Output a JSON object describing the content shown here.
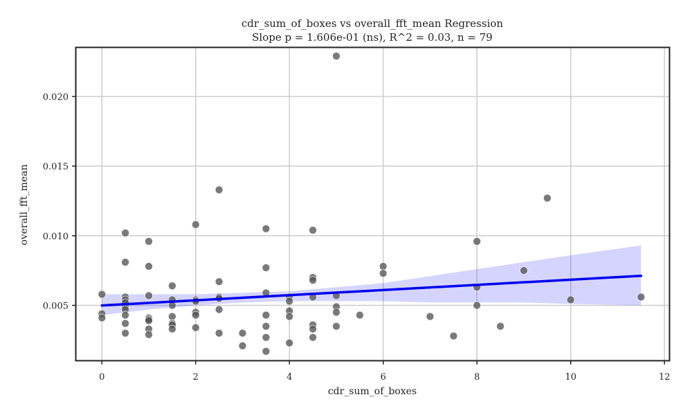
{
  "chart_data": {
    "type": "scatter",
    "title": "cdr_sum_of_boxes vs overall_fft_mean Regression",
    "subtitle": "Slope p = 1.606e-01 (ns), R^2 = 0.03, n = 79",
    "xlabel": "cdr_sum_of_boxes",
    "ylabel": "overall_fft_mean",
    "xlim": [
      -0.55,
      12.1
    ],
    "ylim": [
      0.00105,
      0.0235
    ],
    "x_ticks": [
      0,
      2,
      4,
      6,
      8,
      10,
      12
    ],
    "y_ticks": [
      0.005,
      0.01,
      0.015,
      0.02
    ],
    "x_tick_labels": [
      "0",
      "2",
      "4",
      "6",
      "8",
      "10",
      "12"
    ],
    "y_tick_labels": [
      "0.005",
      "0.010",
      "0.015",
      "0.020"
    ],
    "grid": true,
    "series": [
      {
        "points": [
          [
            0,
            0.0058
          ],
          [
            0,
            0.0044
          ],
          [
            0,
            0.0041
          ],
          [
            0.5,
            0.0102
          ],
          [
            0.5,
            0.0081
          ],
          [
            0.5,
            0.0056
          ],
          [
            0.5,
            0.0054
          ],
          [
            0.5,
            0.0052
          ],
          [
            0.5,
            0.0049
          ],
          [
            0.5,
            0.0047
          ],
          [
            0.5,
            0.0043
          ],
          [
            0.5,
            0.0037
          ],
          [
            0.5,
            0.003
          ],
          [
            1,
            0.0096
          ],
          [
            1,
            0.0078
          ],
          [
            1,
            0.0057
          ],
          [
            1,
            0.0041
          ],
          [
            1,
            0.004
          ],
          [
            1,
            0.0039
          ],
          [
            1,
            0.0033
          ],
          [
            1,
            0.0029
          ],
          [
            1.5,
            0.0064
          ],
          [
            1.5,
            0.0054
          ],
          [
            1.5,
            0.005
          ],
          [
            1.5,
            0.0042
          ],
          [
            1.5,
            0.0037
          ],
          [
            1.5,
            0.0036
          ],
          [
            1.5,
            0.0033
          ],
          [
            2,
            0.0108
          ],
          [
            2,
            0.0054
          ],
          [
            2,
            0.0053
          ],
          [
            2,
            0.0045
          ],
          [
            2,
            0.0043
          ],
          [
            2,
            0.0034
          ],
          [
            2.5,
            0.0133
          ],
          [
            2.5,
            0.0067
          ],
          [
            2.5,
            0.0056
          ],
          [
            2.5,
            0.0055
          ],
          [
            2.5,
            0.0047
          ],
          [
            2.5,
            0.003
          ],
          [
            3,
            0.003
          ],
          [
            3,
            0.0021
          ],
          [
            3.5,
            0.0105
          ],
          [
            3.5,
            0.0077
          ],
          [
            3.5,
            0.0059
          ],
          [
            3.5,
            0.0043
          ],
          [
            3.5,
            0.0035
          ],
          [
            3.5,
            0.0027
          ],
          [
            3.5,
            0.0017
          ],
          [
            4,
            0.0056
          ],
          [
            4,
            0.0053
          ],
          [
            4,
            0.0046
          ],
          [
            4,
            0.0042
          ],
          [
            4,
            0.0023
          ],
          [
            4.5,
            0.0104
          ],
          [
            4.5,
            0.007
          ],
          [
            4.5,
            0.0068
          ],
          [
            4.5,
            0.0056
          ],
          [
            4.5,
            0.0036
          ],
          [
            4.5,
            0.0033
          ],
          [
            4.5,
            0.0027
          ],
          [
            5,
            0.0229
          ],
          [
            5,
            0.0057
          ],
          [
            5,
            0.0049
          ],
          [
            5,
            0.0045
          ],
          [
            5,
            0.0035
          ],
          [
            5.5,
            0.0043
          ],
          [
            6,
            0.0078
          ],
          [
            6,
            0.0073
          ],
          [
            7,
            0.0042
          ],
          [
            7.5,
            0.0028
          ],
          [
            8,
            0.0096
          ],
          [
            8,
            0.0063
          ],
          [
            8,
            0.005
          ],
          [
            8.5,
            0.0035
          ],
          [
            9,
            0.0075
          ],
          [
            9.5,
            0.0127
          ],
          [
            10,
            0.0054
          ],
          [
            11.5,
            0.0056
          ]
        ],
        "color": "#555555"
      }
    ],
    "regression_line": {
      "x": [
        0,
        11.5
      ],
      "y": [
        0.00499,
        0.00712
      ],
      "color": "#0000ee"
    },
    "confidence_band": {
      "x": [
        0,
        1,
        2,
        3,
        4,
        5,
        6,
        7,
        8,
        9,
        10,
        11.5
      ],
      "lower": [
        0.0043,
        0.0047,
        0.005,
        0.0052,
        0.0053,
        0.0053,
        0.0053,
        0.0052,
        0.0052,
        0.0052,
        0.0051,
        0.005
      ],
      "upper": [
        0.0058,
        0.0058,
        0.0058,
        0.0059,
        0.006,
        0.0063,
        0.0066,
        0.0071,
        0.0076,
        0.0081,
        0.0086,
        0.0093
      ],
      "color": "#0000ff"
    }
  }
}
